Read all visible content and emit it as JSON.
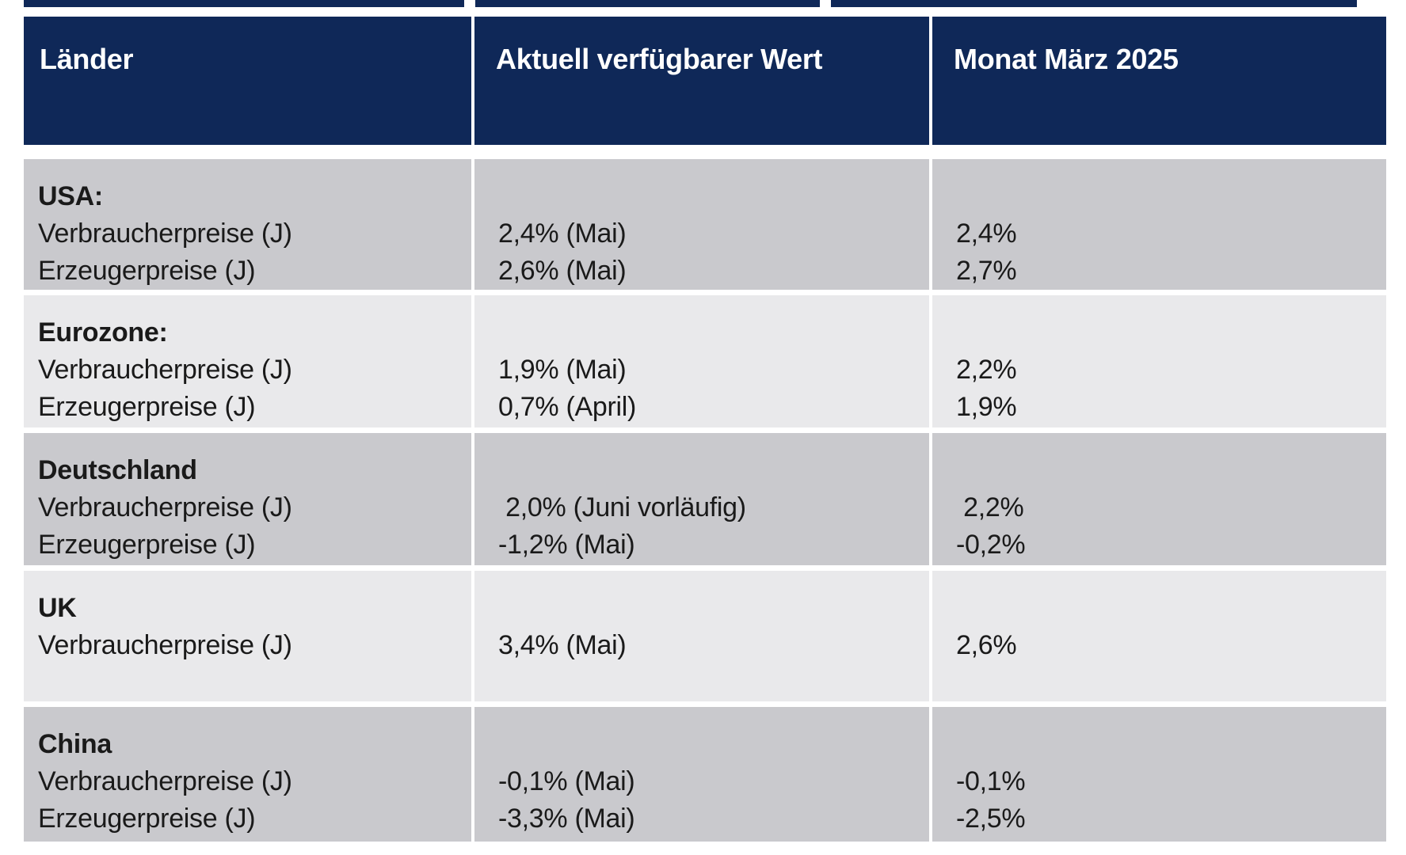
{
  "colors": {
    "page_bg": "#ffffff",
    "header_bg": "#0f2858",
    "header_text": "#ffffff",
    "row_dark_bg": "#c9c9cd",
    "row_light_bg": "#e9e9eb",
    "body_text": "#1a1a1a",
    "separator": "#ffffff"
  },
  "header": {
    "columns": [
      "Länder",
      "Aktuell verfügbarer Wert",
      "Monat März 2025"
    ]
  },
  "rows": [
    {
      "country": "USA:",
      "shade": "dark",
      "labels": [
        "Verbraucherpreise (J)",
        "Erzeugerpreise (J)"
      ],
      "current": [
        "2,4% (Mai)",
        "2,6% (Mai)"
      ],
      "march": [
        "2,4%",
        "2,7%"
      ]
    },
    {
      "country": "Eurozone:",
      "shade": "light",
      "labels": [
        "Verbraucherpreise (J)",
        "Erzeugerpreise (J)"
      ],
      "current": [
        "1,9% (Mai)",
        "0,7% (April)"
      ],
      "march": [
        "2,2%",
        "1,9%"
      ]
    },
    {
      "country": "Deutschland",
      "shade": "dark",
      "labels": [
        "Verbraucherpreise (J)",
        "Erzeugerpreise (J)"
      ],
      "current": [
        " 2,0% (Juni vorläufig)",
        "-1,2% (Mai)"
      ],
      "march": [
        " 2,2%",
        "-0,2%"
      ]
    },
    {
      "country": "UK",
      "shade": "light",
      "labels": [
        "Verbraucherpreise (J)"
      ],
      "current": [
        "3,4% (Mai)"
      ],
      "march": [
        "2,6%"
      ]
    },
    {
      "country": "China",
      "shade": "dark",
      "labels": [
        "Verbraucherpreise (J)",
        "Erzeugerpreise (J)"
      ],
      "current": [
        "-0,1% (Mai)",
        "-3,3% (Mai)"
      ],
      "march": [
        "-0,1%",
        "-2,5%"
      ]
    }
  ]
}
